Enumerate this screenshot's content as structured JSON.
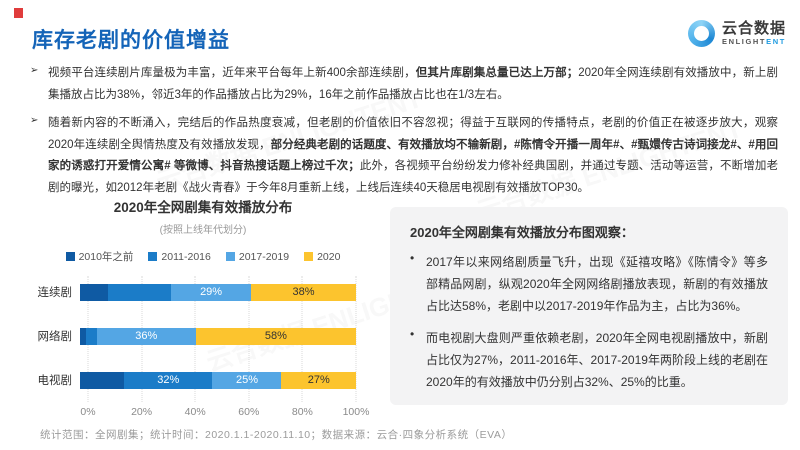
{
  "colors": {
    "title_blue": "#1464b8",
    "red_mark": "#e03c3c",
    "panel_bg": "#f3f3f4",
    "logo_accent": "#1e9be0",
    "text_dark": "#333333",
    "text_gray": "#9b9b9b"
  },
  "header": {
    "title": "库存老剧的价值增益",
    "logo_cn": "云合数据",
    "logo_en_main": "ENLIGHT",
    "logo_en_accent": "ENT"
  },
  "bullet_marker": "➢",
  "intro_bullets": [
    {
      "segments": [
        {
          "text": "视频平台连续剧片库量极为丰富，近年来平台每年上新400余部连续剧，",
          "bold": false
        },
        {
          "text": "但其片库剧集总量已达上万部；",
          "bold": true
        },
        {
          "text": "2020年全网连续剧有效播放中，新上剧集播放占比为38%，邻近3年的作品播放占比为29%，16年之前作品播放占比也在1/3左右。",
          "bold": false
        }
      ]
    },
    {
      "segments": [
        {
          "text": "随着新内容的不断涌入，完结后的作品热度衰减，但老剧的价值依旧不容忽视；得益于互联网的传播特点，老剧的价值正在被逐步放大，观察2020年连续剧全舆情热度及有效播放发现，",
          "bold": false
        },
        {
          "text": "部分经典老剧的话题度、有效播放均不输新剧，#陈情令开播一周年#、#甄嬛传古诗词接龙#、#用回家的诱惑打开爱情公寓# 等微博、抖音热搜话题上榜过千次；",
          "bold": true
        },
        {
          "text": "此外，各视频平台纷纷发力修补经典国剧，并通过专题、活动等运营，不断增加老剧的曝光，如2012年老剧《战火青春》于今年8月重新上线，上线后连续40天稳居电视剧有效播放TOP30。",
          "bold": false
        }
      ]
    }
  ],
  "chart_data": {
    "type": "bar",
    "stacked": true,
    "orientation": "horizontal",
    "title": "2020年全网剧集有效播放分布",
    "subtitle": "(按照上线年代划分)",
    "categories": [
      "连续剧",
      "网络剧",
      "电视剧"
    ],
    "series": [
      {
        "name": "2010年之前",
        "color": "#0f5aa3",
        "label_color": "#ffffff",
        "values": [
          10,
          2,
          16
        ]
      },
      {
        "name": "2011-2016",
        "color": "#1b7cc8",
        "label_color": "#ffffff",
        "values": [
          23,
          4,
          32
        ]
      },
      {
        "name": "2017-2019",
        "color": "#54a6e4",
        "label_color": "#ffffff",
        "values": [
          29,
          36,
          25
        ]
      },
      {
        "name": "2020",
        "color": "#fcc42e",
        "label_color": "#333333",
        "values": [
          38,
          58,
          27
        ]
      }
    ],
    "label_threshold": 25,
    "xlim": [
      0,
      100
    ],
    "xticks": [
      "0%",
      "20%",
      "40%",
      "60%",
      "80%",
      "100%"
    ],
    "grid": "vertical-dotted",
    "legend_position": "top-center"
  },
  "panel": {
    "title": "2020年全网剧集有效播放分布图观察：",
    "bullet_marker": "•",
    "items": [
      "2017年以来网络剧质量飞升，出现《延禧攻略》《陈情令》等多部精品网剧，纵观2020年全网网络剧播放表现，新剧的有效播放占比达58%，老剧中以2017-2019年作品为主，占比为36%。",
      "而电视剧大盘则严重依赖老剧，2020年全网电视剧播放中，新剧占比仅为27%，2011-2016年、2017-2019年两阶段上线的老剧在2020年的有效播放中仍分别占32%、25%的比重。"
    ]
  },
  "footer": {
    "text": "统计范围：全网剧集；统计时间：2020.1.1-2020.11.10；数据来源：云合·四象分析系统（EVA）"
  },
  "watermark": {
    "text": "云合数据 ENLIGHTENT"
  }
}
